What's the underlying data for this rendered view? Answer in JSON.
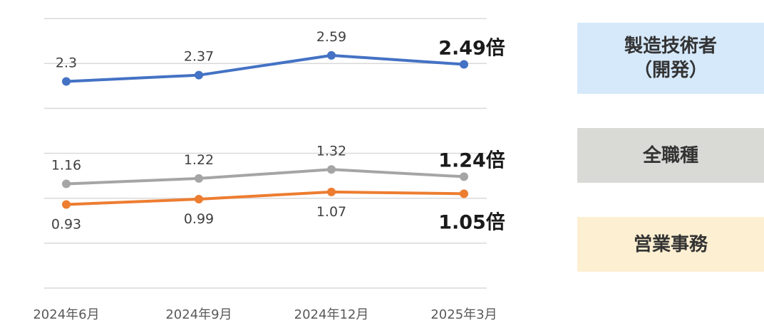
{
  "chart_data": {
    "type": "line",
    "categories": [
      "2024年6月",
      "2024年9月",
      "2024年12月",
      "2025年3月"
    ],
    "ylim": [
      0,
      3
    ],
    "grid": true,
    "legend_position": "right",
    "series": [
      {
        "name": "製造技術者（開発）",
        "legend_lines": [
          "製造技術者",
          "（開発）"
        ],
        "color": "#4472c4",
        "values": [
          2.3,
          2.37,
          2.59,
          2.49
        ],
        "point_labels": [
          "2.3",
          "2.37",
          "2.59",
          ""
        ],
        "end_label": "2.49倍"
      },
      {
        "name": "全職種",
        "legend_lines": [
          "全職種"
        ],
        "color": "#a5a5a5",
        "values": [
          1.16,
          1.22,
          1.32,
          1.24
        ],
        "point_labels": [
          "1.16",
          "1.22",
          "1.32",
          ""
        ],
        "end_label": "1.24倍"
      },
      {
        "name": "営業事務",
        "legend_lines": [
          "営業事務"
        ],
        "color": "#ed7d31",
        "values": [
          0.93,
          0.99,
          1.07,
          1.05
        ],
        "point_labels": [
          "0.93",
          "0.99",
          "1.07",
          ""
        ],
        "end_label": "1.05倍"
      }
    ]
  }
}
